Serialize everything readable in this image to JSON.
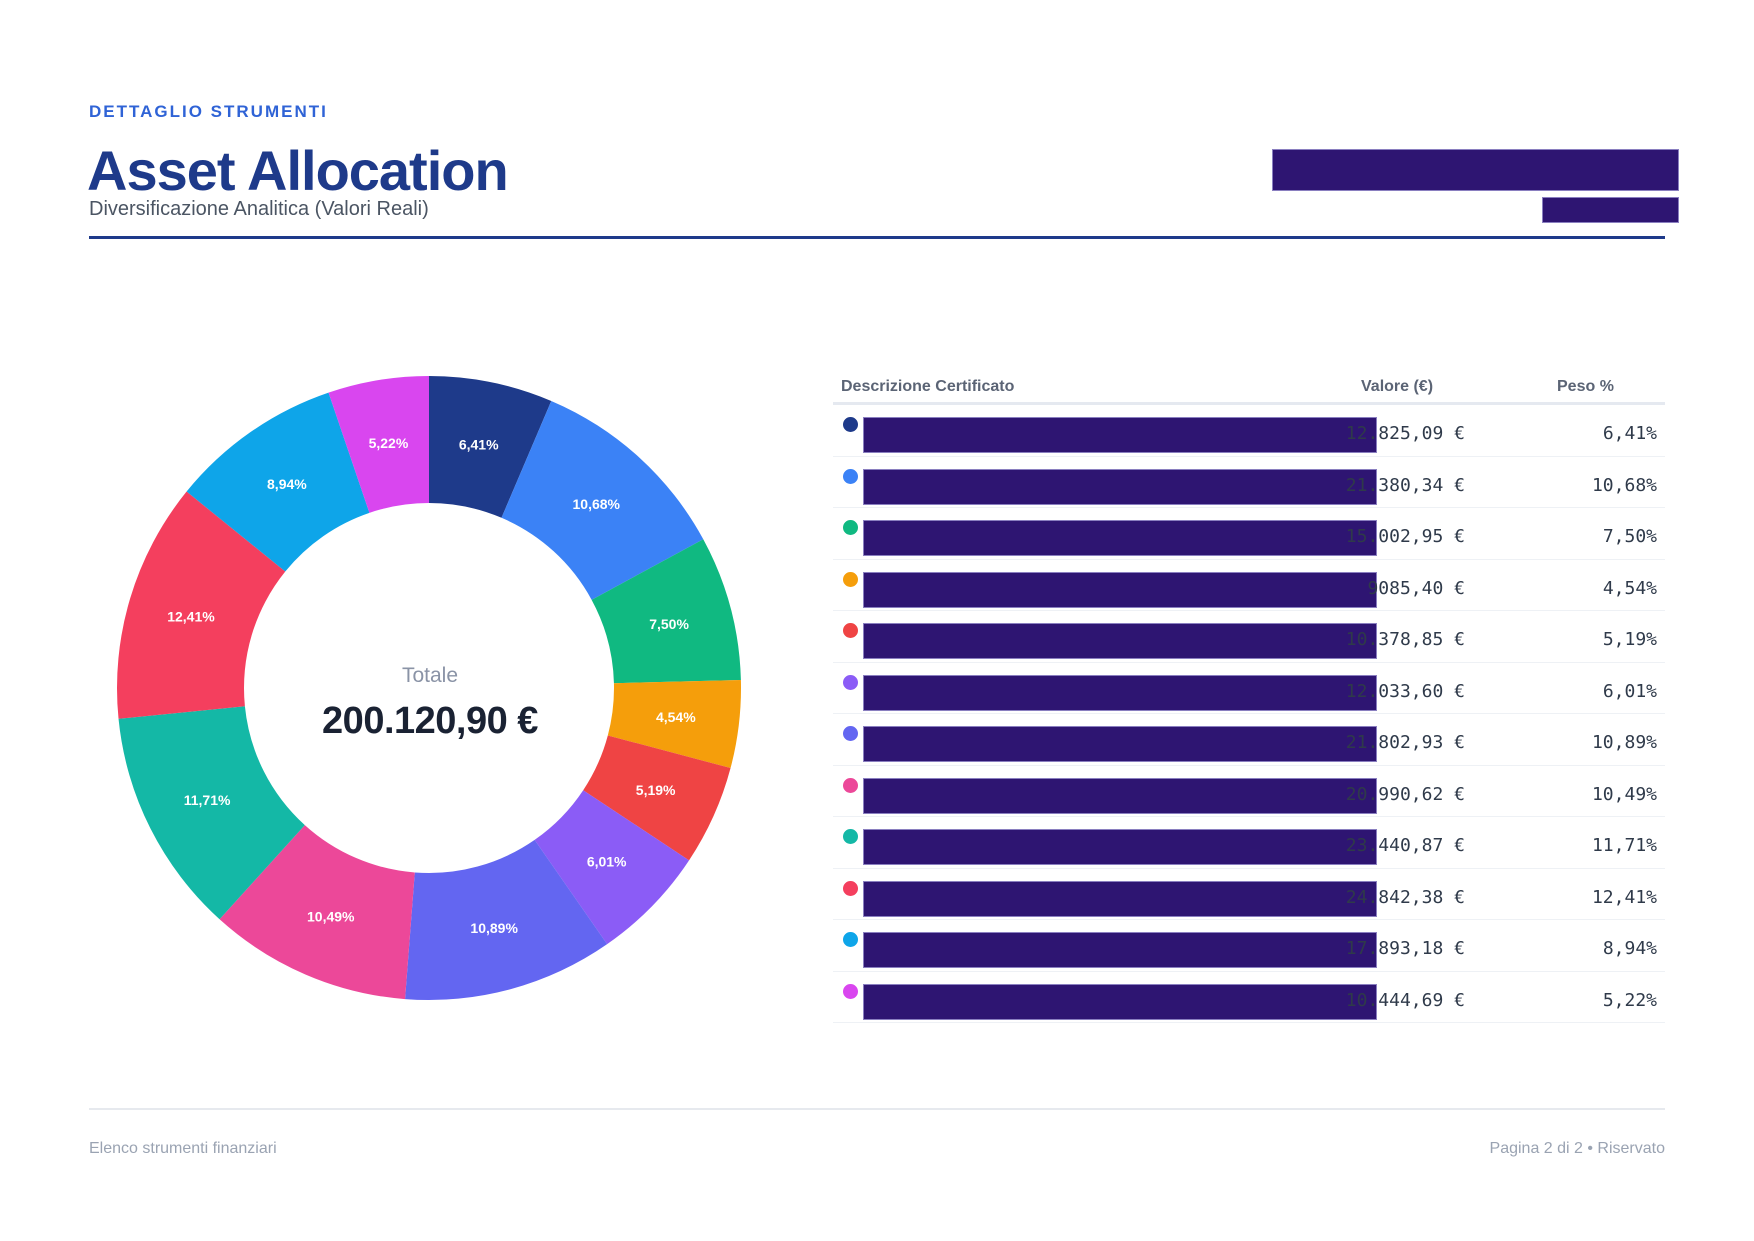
{
  "header": {
    "eyebrow": "DETTAGLIO STRUMENTI",
    "title": "Asset Allocation",
    "subtitle": "Diversificazione Analitica (Valori Reali)"
  },
  "table": {
    "columns": [
      "Descrizione Certificato",
      "Valore (€)",
      "Peso %"
    ],
    "rows": [
      {
        "color": "#1e3a8a",
        "valore": "12.825,09 €",
        "peso": "6,41%"
      },
      {
        "color": "#3b82f6",
        "valore": "21.380,34 €",
        "peso": "10,68%"
      },
      {
        "color": "#10b981",
        "valore": "15.002,95 €",
        "peso": "7,50%"
      },
      {
        "color": "#f59e0b",
        "valore": "9085,40 €",
        "peso": "4,54%"
      },
      {
        "color": "#ef4444",
        "valore": "10.378,85 €",
        "peso": "5,19%"
      },
      {
        "color": "#8b5cf6",
        "valore": "12.033,60 €",
        "peso": "6,01%"
      },
      {
        "color": "#6366f1",
        "valore": "21.802,93 €",
        "peso": "10,89%"
      },
      {
        "color": "#ec4899",
        "valore": "20.990,62 €",
        "peso": "10,49%"
      },
      {
        "color": "#14b8a6",
        "valore": "23.440,87 €",
        "peso": "11,71%"
      },
      {
        "color": "#f43f5e",
        "valore": "24.842,38 €",
        "peso": "12,41%"
      },
      {
        "color": "#0ea5e9",
        "valore": "17.893,18 €",
        "peso": "8,94%"
      },
      {
        "color": "#d946ef",
        "valore": "10.444,69 €",
        "peso": "5,22%"
      }
    ]
  },
  "chart_data": {
    "type": "pie",
    "variant": "donut",
    "title": "",
    "center_label": "Totale",
    "center_value": "200.120,90 €",
    "start_angle": "12 o'clock, clockwise",
    "values": [
      12825.09,
      21380.34,
      15002.95,
      9085.4,
      10378.85,
      12033.6,
      21802.93,
      20990.62,
      23440.87,
      24842.38,
      17893.18,
      10444.69
    ],
    "labels": [
      "6,41%",
      "10,68%",
      "7,50%",
      "4,54%",
      "5,19%",
      "6,01%",
      "10,89%",
      "10,49%",
      "11,71%",
      "12,41%",
      "8,94%",
      "5,22%"
    ],
    "colors": [
      "#1e3a8a",
      "#3b82f6",
      "#10b981",
      "#f59e0b",
      "#ef4444",
      "#8b5cf6",
      "#6366f1",
      "#ec4899",
      "#14b8a6",
      "#f43f5e",
      "#0ea5e9",
      "#d946ef"
    ],
    "legend": "table-right"
  },
  "footer": {
    "left": "Elenco strumenti finanziari",
    "right": "Pagina 2 di 2 • Riservato"
  }
}
